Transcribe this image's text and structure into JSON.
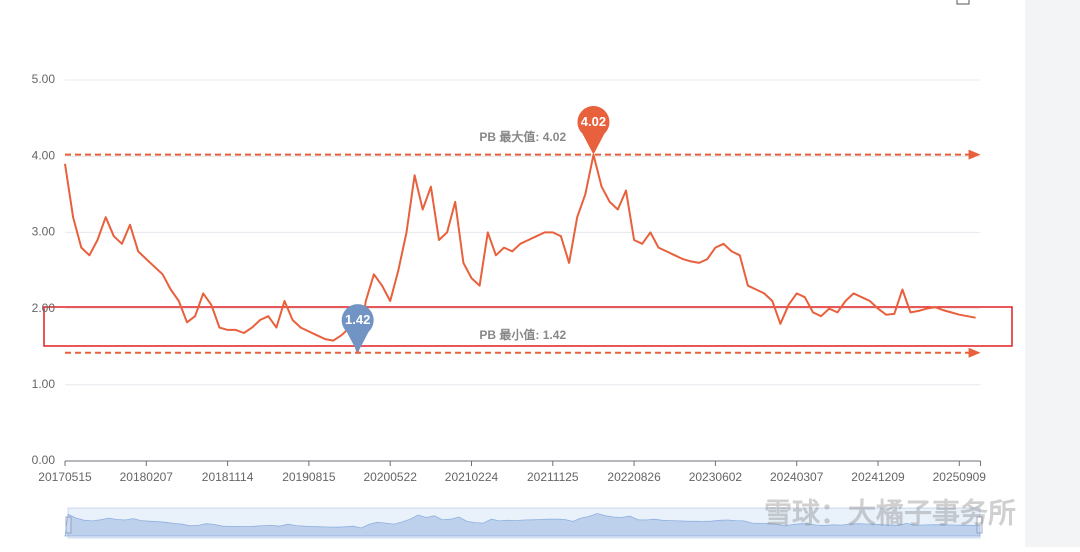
{
  "chart_data": {
    "type": "line",
    "categories": [
      "20170515",
      null,
      null,
      null,
      null,
      null,
      null,
      null,
      null,
      null,
      "20180207",
      null,
      null,
      null,
      null,
      null,
      null,
      null,
      null,
      null,
      "20181114",
      null,
      null,
      null,
      null,
      null,
      null,
      null,
      null,
      null,
      "20190815",
      null,
      null,
      null,
      null,
      null,
      null,
      null,
      null,
      null,
      "20200522",
      null,
      null,
      null,
      null,
      null,
      null,
      null,
      null,
      null,
      "20210224",
      null,
      null,
      null,
      null,
      null,
      null,
      null,
      null,
      null,
      "20211125",
      null,
      null,
      null,
      null,
      null,
      null,
      null,
      null,
      null,
      "20220826",
      null,
      null,
      null,
      null,
      null,
      null,
      null,
      null,
      null,
      "20230602",
      null,
      null,
      null,
      null,
      null,
      null,
      null,
      null,
      null,
      "20240307",
      null,
      null,
      null,
      null,
      null,
      null,
      null,
      null,
      null,
      "20241209",
      null,
      null,
      null,
      null,
      null,
      null,
      null,
      null,
      null,
      "20250909",
      null,
      null
    ],
    "series": [
      {
        "color": "#e8603c",
        "values": [
          3.9,
          3.2,
          2.8,
          2.7,
          2.9,
          3.2,
          2.95,
          2.85,
          3.1,
          2.75,
          2.65,
          2.55,
          2.45,
          2.25,
          2.1,
          1.82,
          1.9,
          2.2,
          2.05,
          1.75,
          1.72,
          1.72,
          1.68,
          1.75,
          1.85,
          1.9,
          1.75,
          2.1,
          1.85,
          1.75,
          1.7,
          1.65,
          1.6,
          1.58,
          1.65,
          1.75,
          1.42,
          2.1,
          2.45,
          2.3,
          2.1,
          2.5,
          3.0,
          3.75,
          3.3,
          3.6,
          2.9,
          3.0,
          3.4,
          2.6,
          2.4,
          2.3,
          3.0,
          2.7,
          2.8,
          2.75,
          2.85,
          2.9,
          2.95,
          3.0,
          3.0,
          2.95,
          2.6,
          3.2,
          3.5,
          4.02,
          3.6,
          3.4,
          3.3,
          3.55,
          2.9,
          2.85,
          3.0,
          2.8,
          2.75,
          2.7,
          2.65,
          2.62,
          2.6,
          2.65,
          2.8,
          2.85,
          2.75,
          2.7,
          2.3,
          2.25,
          2.2,
          2.1,
          1.8,
          2.05,
          2.2,
          2.15,
          1.95,
          1.9,
          2.0,
          1.95,
          2.1,
          2.2,
          2.15,
          2.1,
          2.0,
          1.92,
          1.93,
          2.25,
          1.95,
          1.97,
          2.0,
          2.02,
          1.98,
          1.95,
          1.92,
          1.9,
          1.88
        ]
      }
    ],
    "ylim": [
      0,
      5
    ],
    "yticks": [
      {
        "value": 0,
        "label": "0.00"
      },
      {
        "value": 1,
        "label": "1.00"
      },
      {
        "value": 2,
        "label": "2.00"
      },
      {
        "value": 3,
        "label": "3.00"
      },
      {
        "value": 4,
        "label": "4.00"
      },
      {
        "value": 5,
        "label": "5.00"
      }
    ],
    "grid": true,
    "mark_lines": [
      {
        "label": "PB 最大值: 4.02",
        "value": 4.02
      },
      {
        "label": "PB 最小值: 1.42",
        "value": 1.42
      }
    ],
    "mark_points": [
      {
        "value": 4.02,
        "index": 65,
        "color": "#e8603c"
      },
      {
        "value": 1.42,
        "index": 36,
        "color": "#7194c4"
      }
    ],
    "watermark": "雪球：大橘子事务所"
  }
}
